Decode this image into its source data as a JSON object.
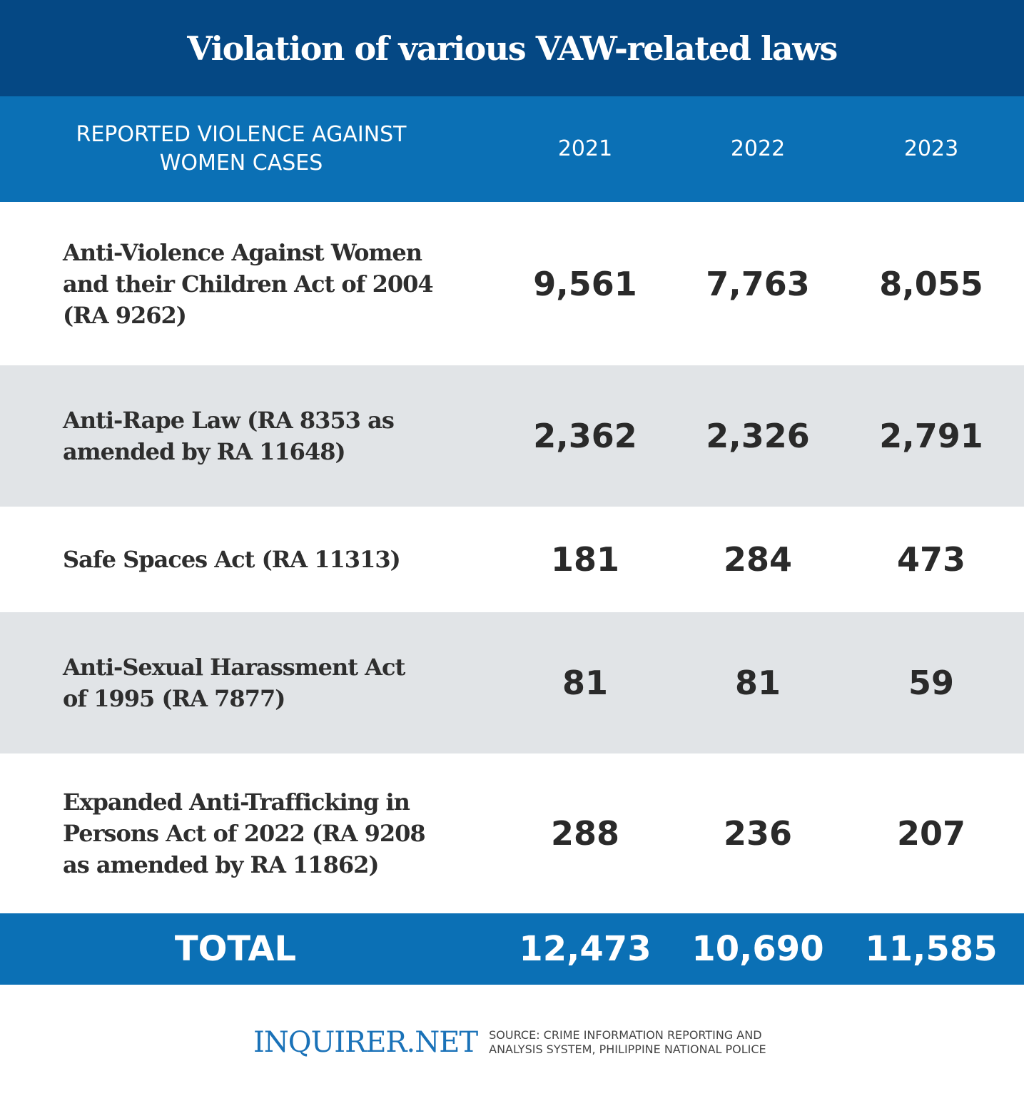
{
  "title": "Violation of various VAW-related laws",
  "colors": {
    "title_band": "#054884",
    "header": "#0b70b5",
    "stripe": "#e1e4e7",
    "text": "#2a2a2a"
  },
  "chart_data": {
    "type": "table",
    "title": "Violation of various VAW-related laws",
    "columns": [
      "REPORTED VIOLENCE AGAINST WOMEN CASES",
      "2021",
      "2022",
      "2023"
    ],
    "rows": [
      {
        "law": "Anti-Violence Against Women and their Children Act of 2004 (RA 9262)",
        "values": [
          "9,561",
          "7,763",
          "8,055"
        ]
      },
      {
        "law": "Anti-Rape Law (RA 8353 as amended by RA 11648)",
        "values": [
          "2,362",
          "2,326",
          "2,791"
        ]
      },
      {
        "law": "Safe Spaces Act (RA 11313)",
        "values": [
          "181",
          "284",
          "473"
        ]
      },
      {
        "law": "Anti-Sexual Harassment Act of 1995 (RA 7877)",
        "values": [
          "81",
          "81",
          "59"
        ]
      },
      {
        "law": "Expanded Anti-Trafficking in Persons Act of 2022 (RA 9208 as amended by RA 11862)",
        "values": [
          "288",
          "236",
          "207"
        ]
      }
    ],
    "total": {
      "label": "TOTAL",
      "values": [
        "12,473",
        "10,690",
        "11,585"
      ]
    }
  },
  "footer": {
    "logo": "INQUIRER.NET",
    "source_line1": "SOURCE:  CRIME INFORMATION REPORTING AND",
    "source_line2": "ANALYSIS SYSTEM, PHILIPPINE NATIONAL POLICE"
  }
}
